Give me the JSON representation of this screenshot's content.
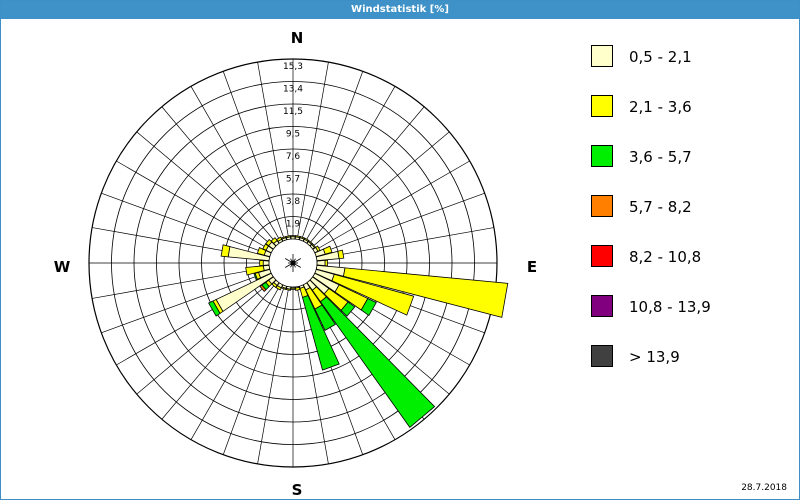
{
  "window": {
    "title": "Windstatistik [%]",
    "date": "28.7.2018"
  },
  "chart_data": {
    "type": "polar-bar",
    "title": "Windstatistik [%]",
    "unit": "%",
    "directions": {
      "n": "N",
      "e": "E",
      "s": "S",
      "w": "W"
    },
    "ring_labels": [
      "1,9",
      "3,8",
      "5,7",
      "7,6",
      "9,5",
      "11,5",
      "13,4",
      "15,3"
    ],
    "rmax": 15.3,
    "grid": true,
    "legend_position": "right",
    "classes": [
      {
        "label": "0,5 - 2,1",
        "color": "#ffffcc"
      },
      {
        "label": "2,1 - 3,6",
        "color": "#ffff00"
      },
      {
        "label": "3,6 - 5,7",
        "color": "#00ee00"
      },
      {
        "label": "5,7 - 8,2",
        "color": "#ff8000"
      },
      {
        "label": "8,2 - 10,8",
        "color": "#ff0000"
      },
      {
        "label": "10,8 - 13,9",
        "color": "#800080"
      },
      {
        "label": "> 13,9",
        "color": "#404040"
      }
    ],
    "bearings": [
      0,
      10,
      20,
      30,
      40,
      50,
      60,
      70,
      80,
      90,
      100,
      110,
      120,
      130,
      140,
      150,
      160,
      170,
      180,
      190,
      200,
      210,
      220,
      230,
      240,
      250,
      260,
      270,
      280,
      290,
      300,
      310,
      320,
      330,
      340,
      350
    ],
    "stacks": [
      [
        0.2,
        0.1,
        0.0,
        0.0
      ],
      [
        0.2,
        0.1,
        0.0,
        0.0
      ],
      [
        0.2,
        0.1,
        0.0,
        0.0
      ],
      [
        0.2,
        0.1,
        0.0,
        0.0
      ],
      [
        0.2,
        0.1,
        0.0,
        0.0
      ],
      [
        0.2,
        0.1,
        0.0,
        0.0
      ],
      [
        0.3,
        0.2,
        0.0,
        0.0
      ],
      [
        0.8,
        0.6,
        0.0,
        0.0
      ],
      [
        1.9,
        0.4,
        0.0,
        0.0
      ],
      [
        0.7,
        0.2,
        0.0,
        0.0
      ],
      [
        2.4,
        13.9,
        0.0,
        0.0
      ],
      [
        1.6,
        7.0,
        0.0,
        0.0
      ],
      [
        2.3,
        2.7,
        0.8,
        0.0
      ],
      [
        1.7,
        2.0,
        0.7,
        0.0
      ],
      [
        0.8,
        1.2,
        13.1,
        0.0
      ],
      [
        0.5,
        1.8,
        2.0,
        0.0
      ],
      [
        0.2,
        0.8,
        6.4,
        0.0
      ],
      [
        0.1,
        0.2,
        0.0,
        0.0
      ],
      [
        0.1,
        0.1,
        0.0,
        0.0
      ],
      [
        0.2,
        0.1,
        0.0,
        0.0
      ],
      [
        0.2,
        0.1,
        0.0,
        0.0
      ],
      [
        0.3,
        0.2,
        0.0,
        0.0
      ],
      [
        0.3,
        0.2,
        0.0,
        0.0
      ],
      [
        0.5,
        0.3,
        0.4,
        0.2
      ],
      [
        5.2,
        0.3,
        0.4,
        0.0
      ],
      [
        1.0,
        0.3,
        0.1,
        0.0
      ],
      [
        0.5,
        1.5,
        0.0,
        0.0
      ],
      [
        0.5,
        0.3,
        0.0,
        0.0
      ],
      [
        3.5,
        0.6,
        0.0,
        0.0
      ],
      [
        0.5,
        0.6,
        0.0,
        0.0
      ],
      [
        0.5,
        0.3,
        0.0,
        0.0
      ],
      [
        0.5,
        0.3,
        0.0,
        0.0
      ],
      [
        0.3,
        0.3,
        0.0,
        0.0
      ],
      [
        0.2,
        0.2,
        0.0,
        0.0
      ],
      [
        0.2,
        0.1,
        0.0,
        0.0
      ],
      [
        0.2,
        0.1,
        0.0,
        0.0
      ]
    ]
  }
}
